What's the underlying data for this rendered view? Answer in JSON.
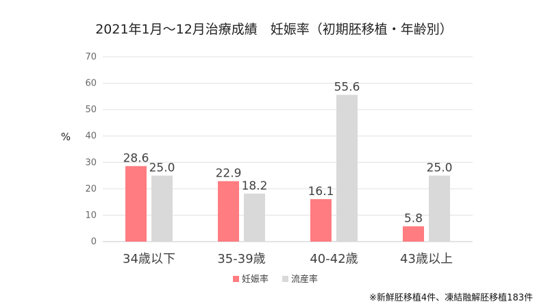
{
  "chart_data": {
    "type": "bar",
    "title": "2021年1月〜12月治療成績　妊娠率（初期胚移植・年齢別）",
    "ylabel": "%",
    "xlabel": "",
    "ylim": [
      0,
      70
    ],
    "yticks": [
      0,
      10,
      20,
      30,
      40,
      50,
      60,
      70
    ],
    "grid": true,
    "legend_position": "bottom",
    "categories": [
      "34歳以下",
      "35-39歳",
      "40-42歳",
      "43歳以上"
    ],
    "series": [
      {
        "name": "妊娠率",
        "values": [
          28.6,
          22.9,
          16.1,
          5.8
        ],
        "color": "#ff7c80"
      },
      {
        "name": "流産率",
        "values": [
          25.0,
          18.2,
          55.6,
          25.0
        ],
        "color": "#d9d9d9"
      }
    ],
    "note": "※新鮮胚移植4件、凍結融解胚移植183件"
  }
}
